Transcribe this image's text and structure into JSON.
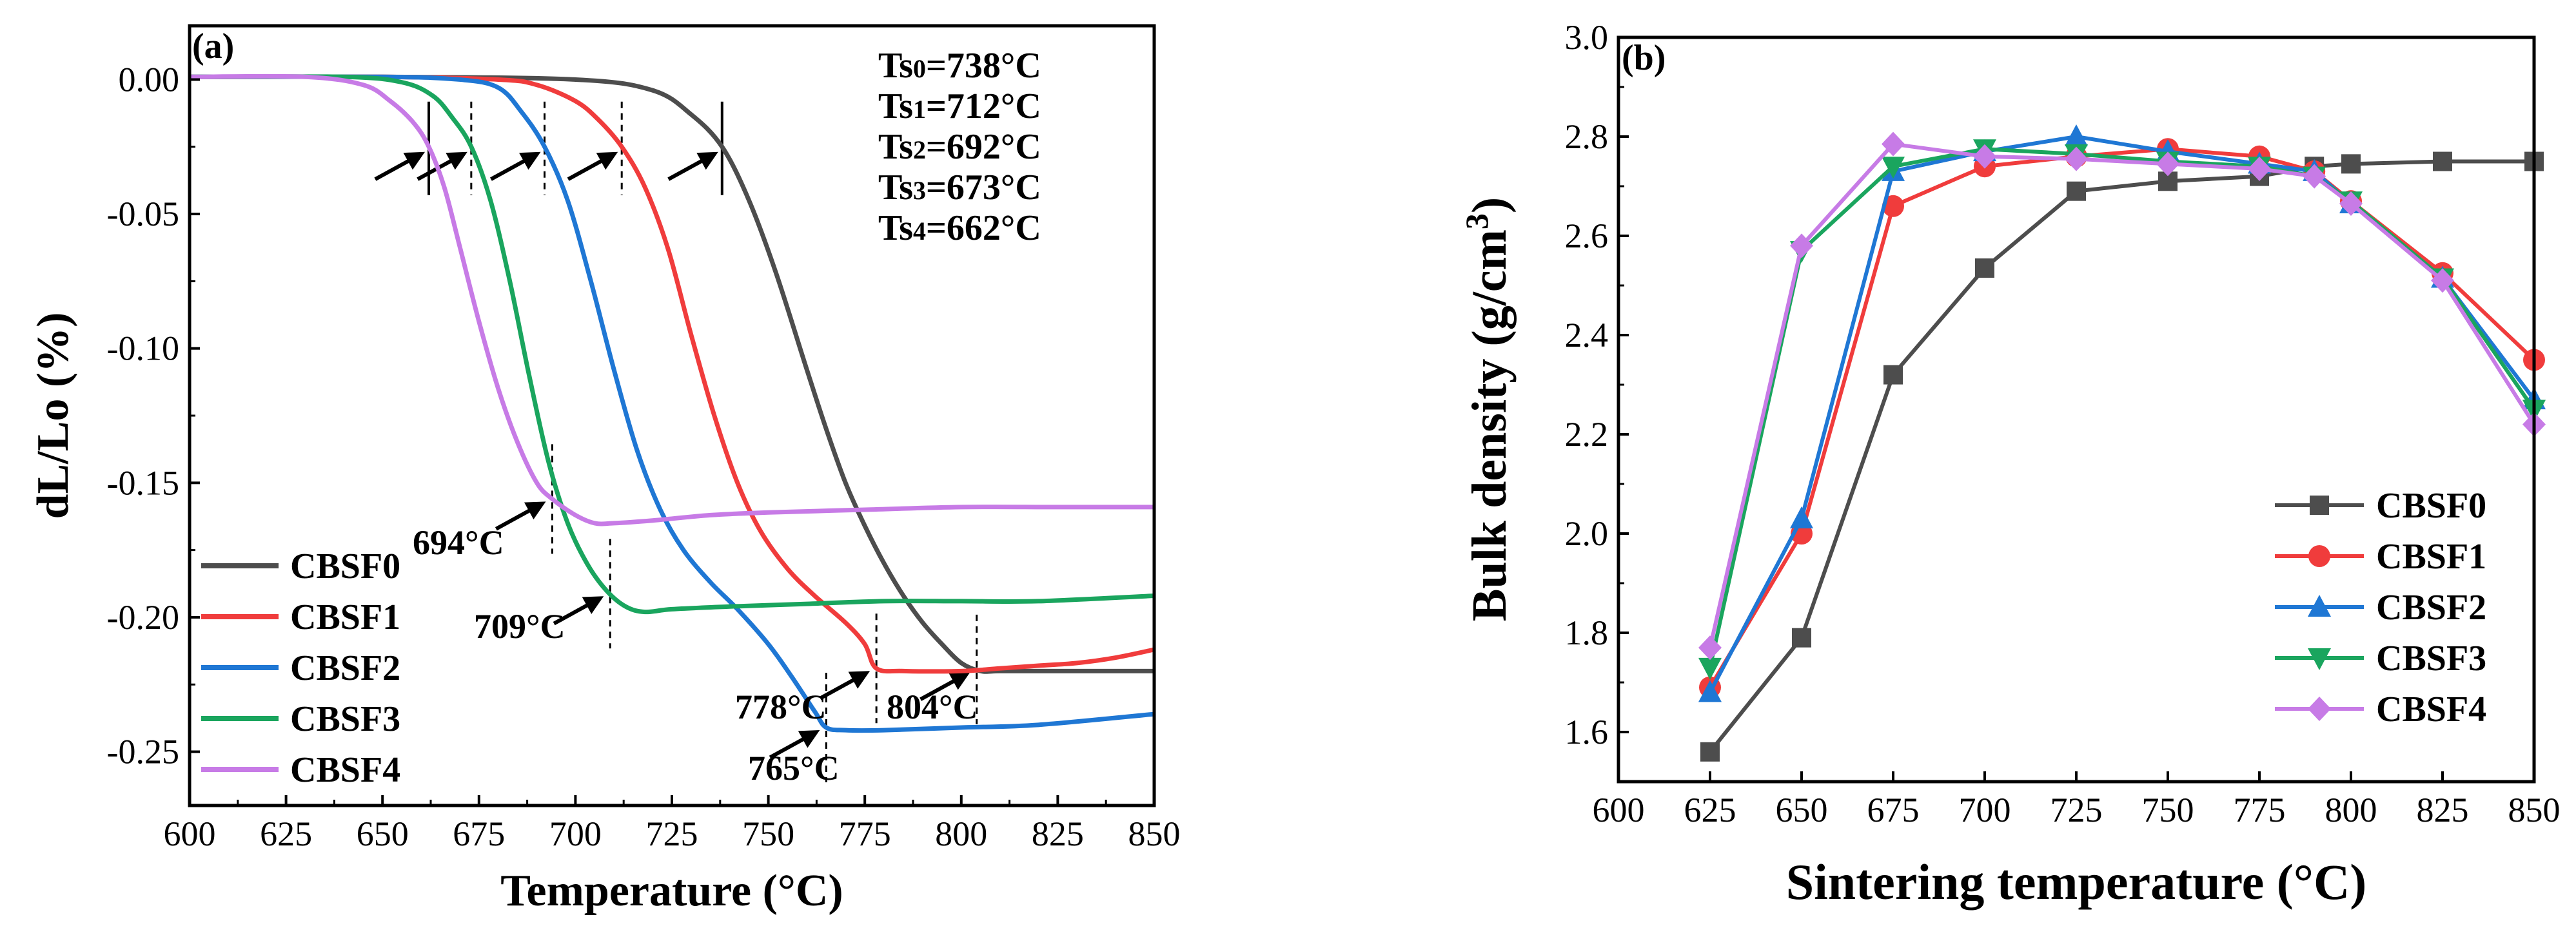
{
  "chart_data": [
    {
      "type": "line",
      "panel": "(a)",
      "xlabel": "Temperature (°C)",
      "ylabel": "dL/Lo (%)",
      "xlim": [
        600,
        850
      ],
      "ylim": [
        -0.27,
        0.02
      ],
      "xticks": [
        600,
        625,
        650,
        675,
        700,
        725,
        750,
        775,
        800,
        825,
        850
      ],
      "xtick_labels": [
        "600",
        "625",
        "650",
        "675",
        "700",
        "725",
        "750",
        "775",
        "800",
        "825",
        "850"
      ],
      "yticks": [
        0.0,
        -0.05,
        -0.1,
        -0.15,
        -0.2,
        -0.25
      ],
      "ytick_labels": [
        "0.00",
        "-0.05",
        "-0.10",
        "-0.15",
        "-0.20",
        "-0.25"
      ],
      "legend_position": "bottom-left",
      "ts_labels": [
        {
          "sub": "0",
          "value": "=738°C"
        },
        {
          "sub": "1",
          "value": "=712°C"
        },
        {
          "sub": "2",
          "value": "=692°C"
        },
        {
          "sub": "3",
          "value": "=673°C"
        },
        {
          "sub": "4",
          "value": "=662°C"
        }
      ],
      "onset_markers": [
        738,
        712,
        692,
        673,
        662
      ],
      "end_markers": [
        694,
        709,
        765,
        778,
        804
      ],
      "end_labels": [
        "694°C",
        "709°C",
        "765°C",
        "778°C",
        "804°C"
      ],
      "series": [
        {
          "name": "CBSF0",
          "color": "#4d4d4d",
          "x": [
            600,
            650,
            700,
            720,
            730,
            738,
            745,
            752,
            760,
            765,
            770,
            775,
            780,
            785,
            790,
            795,
            800,
            805,
            810,
            820,
            830,
            850
          ],
          "y": [
            0.001,
            0.001,
            0.0,
            -0.004,
            -0.013,
            -0.025,
            -0.045,
            -0.072,
            -0.108,
            -0.13,
            -0.15,
            -0.166,
            -0.18,
            -0.192,
            -0.202,
            -0.21,
            -0.217,
            -0.22,
            -0.22,
            -0.22,
            -0.22,
            -0.22
          ]
        },
        {
          "name": "CBSF1",
          "color": "#f03c3c",
          "x": [
            600,
            650,
            680,
            690,
            700,
            706,
            712,
            718,
            724,
            730,
            736,
            742,
            748,
            755,
            762,
            770,
            775,
            778,
            785,
            800,
            810,
            820,
            830,
            840,
            850
          ],
          "y": [
            0.001,
            0.001,
            0.0,
            -0.002,
            -0.008,
            -0.015,
            -0.025,
            -0.04,
            -0.063,
            -0.095,
            -0.125,
            -0.15,
            -0.168,
            -0.182,
            -0.192,
            -0.202,
            -0.21,
            -0.219,
            -0.22,
            -0.22,
            -0.219,
            -0.218,
            -0.217,
            -0.215,
            -0.212
          ]
        },
        {
          "name": "CBSF2",
          "color": "#1f77d4",
          "x": [
            600,
            650,
            670,
            680,
            686,
            692,
            698,
            704,
            710,
            716,
            722,
            728,
            735,
            742,
            750,
            756,
            762,
            765,
            770,
            780,
            800,
            820,
            850
          ],
          "y": [
            0.001,
            0.001,
            0.0,
            -0.003,
            -0.012,
            -0.025,
            -0.045,
            -0.075,
            -0.108,
            -0.138,
            -0.16,
            -0.175,
            -0.187,
            -0.197,
            -0.21,
            -0.222,
            -0.235,
            -0.241,
            -0.242,
            -0.242,
            -0.241,
            -0.24,
            -0.236
          ]
        },
        {
          "name": "CBSF3",
          "color": "#1aa55e",
          "x": [
            600,
            640,
            655,
            663,
            668,
            673,
            678,
            683,
            688,
            693,
            698,
            703,
            708,
            713,
            718,
            725,
            740,
            760,
            780,
            800,
            820,
            850
          ],
          "y": [
            0.001,
            0.001,
            -0.001,
            -0.006,
            -0.014,
            -0.025,
            -0.045,
            -0.075,
            -0.11,
            -0.142,
            -0.165,
            -0.18,
            -0.19,
            -0.196,
            -0.198,
            -0.197,
            -0.196,
            -0.195,
            -0.194,
            -0.194,
            -0.194,
            -0.192
          ]
        },
        {
          "name": "CBSF4",
          "color": "#c77be6",
          "x": [
            600,
            630,
            645,
            652,
            658,
            662,
            666,
            670,
            675,
            680,
            685,
            690,
            694,
            700,
            705,
            710,
            720,
            735,
            750,
            775,
            800,
            825,
            850
          ],
          "y": [
            0.001,
            0.001,
            -0.002,
            -0.008,
            -0.016,
            -0.025,
            -0.04,
            -0.062,
            -0.09,
            -0.115,
            -0.135,
            -0.15,
            -0.156,
            -0.162,
            -0.165,
            -0.165,
            -0.164,
            -0.162,
            -0.161,
            -0.16,
            -0.159,
            -0.159,
            -0.159
          ]
        }
      ]
    },
    {
      "type": "line",
      "panel": "(b)",
      "xlabel": "Sintering  temperature (°C)",
      "ylabel": "Bulk density (g/cm",
      "ylabel_sup": "3",
      "ylabel_close": ")",
      "xlim": [
        600,
        850
      ],
      "ylim": [
        1.5,
        3.0
      ],
      "xticks": [
        600,
        625,
        650,
        675,
        700,
        725,
        750,
        775,
        800,
        825,
        850
      ],
      "xtick_labels": [
        "600",
        "625",
        "650",
        "675",
        "700",
        "725",
        "750",
        "775",
        "800",
        "825",
        "850"
      ],
      "yticks": [
        1.6,
        1.8,
        2.0,
        2.2,
        2.4,
        2.6,
        2.8,
        3.0
      ],
      "ytick_labels": [
        "1.6",
        "1.8",
        "2.0",
        "2.2",
        "2.4",
        "2.6",
        "2.8",
        "3.0"
      ],
      "legend_position": "bottom-right",
      "series": [
        {
          "name": "CBSF0",
          "color": "#4d4d4d",
          "marker": "square",
          "x": [
            625,
            650,
            675,
            700,
            725,
            750,
            775,
            790,
            800,
            825,
            850
          ],
          "y": [
            1.56,
            1.79,
            2.32,
            2.535,
            2.69,
            2.71,
            2.72,
            2.74,
            2.745,
            2.75,
            2.75
          ]
        },
        {
          "name": "CBSF1",
          "color": "#f03c3c",
          "marker": "circle",
          "x": [
            625,
            650,
            675,
            700,
            725,
            750,
            775,
            790,
            800,
            825,
            850
          ],
          "y": [
            1.69,
            2.0,
            2.66,
            2.74,
            2.76,
            2.775,
            2.76,
            2.73,
            2.67,
            2.525,
            2.35
          ]
        },
        {
          "name": "CBSF2",
          "color": "#1f77d4",
          "marker": "triangle-up",
          "x": [
            625,
            650,
            675,
            700,
            725,
            750,
            775,
            790,
            800,
            825,
            850
          ],
          "y": [
            1.68,
            2.03,
            2.73,
            2.77,
            2.8,
            2.77,
            2.745,
            2.73,
            2.665,
            2.515,
            2.27
          ]
        },
        {
          "name": "CBSF3",
          "color": "#1aa55e",
          "marker": "triangle-down",
          "x": [
            625,
            650,
            675,
            700,
            725,
            750,
            775,
            790,
            800,
            825,
            850
          ],
          "y": [
            1.73,
            2.57,
            2.74,
            2.775,
            2.765,
            2.75,
            2.74,
            2.72,
            2.67,
            2.515,
            2.25
          ]
        },
        {
          "name": "CBSF4",
          "color": "#c77be6",
          "marker": "diamond",
          "x": [
            625,
            650,
            675,
            700,
            725,
            750,
            775,
            790,
            800,
            825,
            850
          ],
          "y": [
            1.77,
            2.58,
            2.785,
            2.76,
            2.755,
            2.745,
            2.735,
            2.72,
            2.665,
            2.51,
            2.22
          ]
        }
      ]
    }
  ]
}
